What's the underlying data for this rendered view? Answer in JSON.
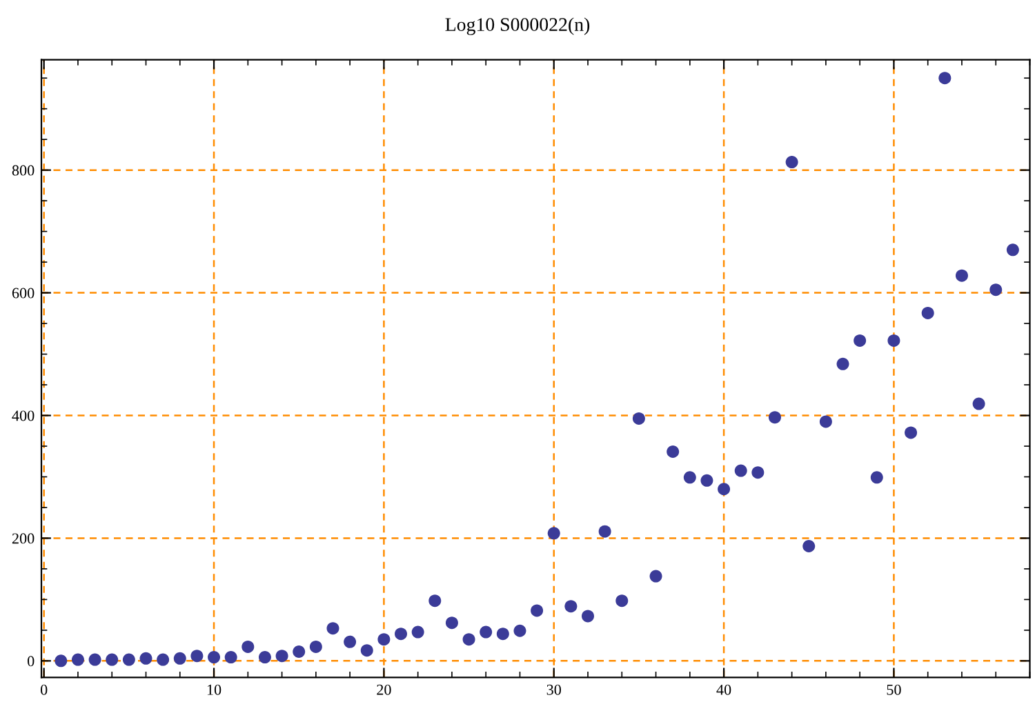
{
  "chart_data": {
    "type": "scatter",
    "title": "Log10 S000022(n)",
    "x": [
      1,
      2,
      3,
      4,
      5,
      6,
      7,
      8,
      9,
      10,
      11,
      12,
      13,
      14,
      15,
      16,
      17,
      18,
      19,
      20,
      21,
      22,
      23,
      24,
      25,
      26,
      27,
      28,
      29,
      30,
      31,
      32,
      33,
      34,
      35,
      36,
      37,
      38,
      39,
      40,
      41,
      42,
      43,
      44,
      45,
      46,
      47,
      48,
      49,
      50,
      51,
      52,
      53,
      54,
      55,
      56,
      57
    ],
    "series": [
      {
        "color": "#3b3b98",
        "values": [
          0,
          2,
          2,
          2,
          2,
          4,
          2,
          4,
          8,
          6,
          6,
          23,
          6,
          8,
          15,
          23,
          53,
          31,
          17,
          35,
          44,
          47,
          98,
          62,
          35,
          47,
          44,
          49,
          82,
          208,
          89,
          73,
          211,
          98,
          395,
          138,
          341,
          299,
          294,
          280,
          310,
          307,
          397,
          813,
          187,
          390,
          484,
          522,
          299,
          522,
          372,
          567,
          950,
          628,
          419,
          605,
          670
        ]
      }
    ],
    "xlim": [
      -0.15,
      58
    ],
    "ylim": [
      -27,
      980
    ],
    "xticks": [
      0,
      10,
      20,
      30,
      40,
      50
    ],
    "yticks": [
      0,
      200,
      400,
      600,
      800
    ],
    "grid": true,
    "marker": "circle"
  }
}
